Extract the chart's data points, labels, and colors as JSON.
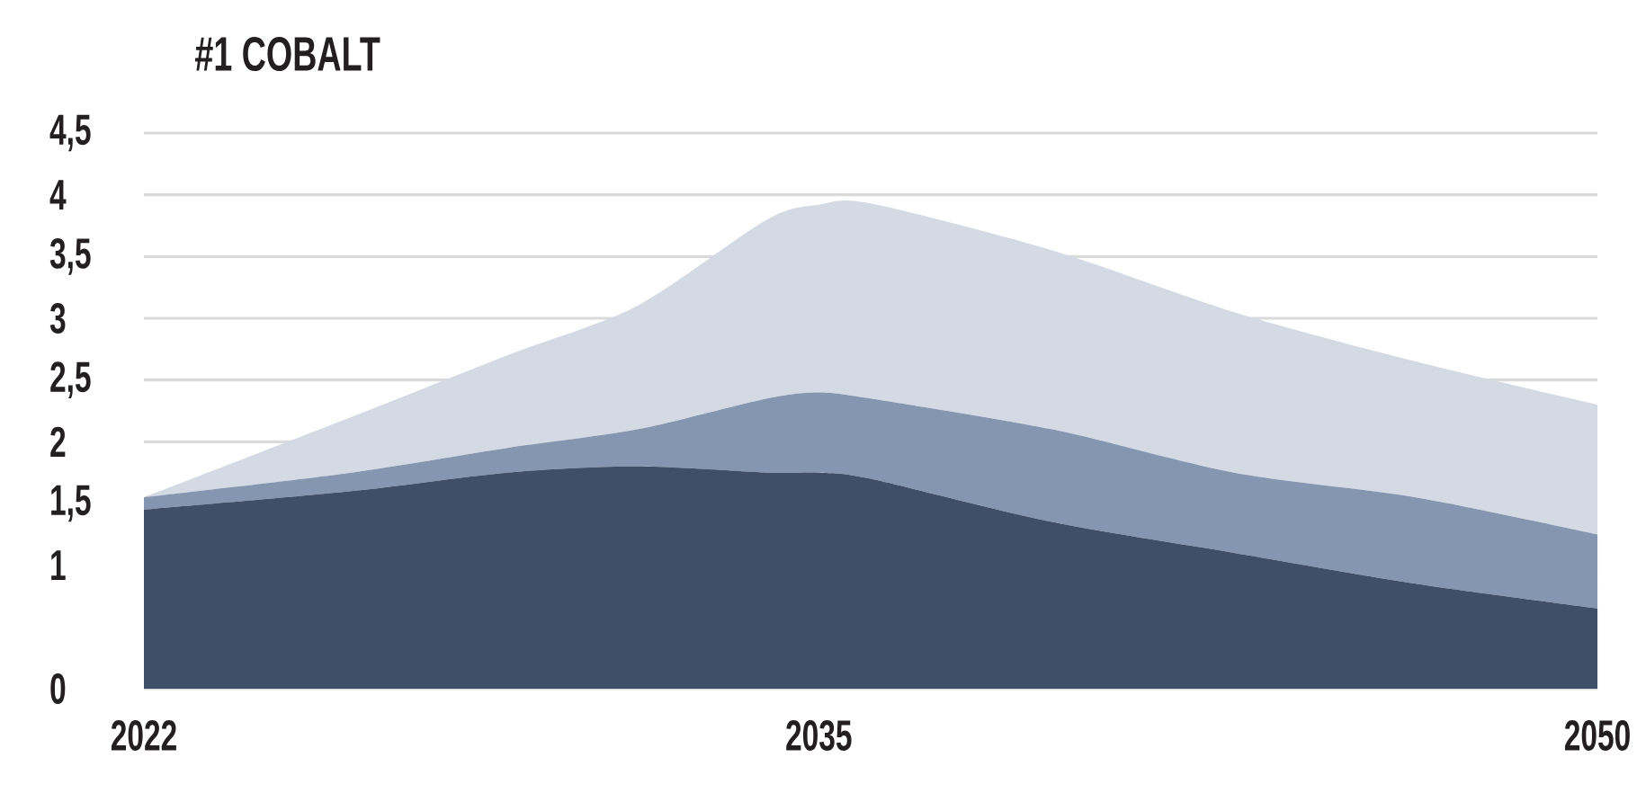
{
  "chart_data": {
    "type": "area",
    "title": "#1 COBALT",
    "stacked": true,
    "x": [
      2022,
      2026,
      2029,
      2031.5,
      2034,
      2035,
      2036,
      2039.5,
      2043,
      2046.5,
      2050
    ],
    "xlim": [
      2022,
      2050
    ],
    "xticks": [
      2022,
      2035,
      2050
    ],
    "ylim": [
      0,
      4.5
    ],
    "yticks": [
      0,
      1,
      {
        "value": 1.5,
        "label": "1,5"
      },
      2,
      {
        "value": 2.5,
        "label": "2,5"
      },
      3,
      {
        "value": 3.5,
        "label": "3,5"
      },
      4,
      {
        "value": 4.5,
        "label": "4,5"
      }
    ],
    "grid": "y",
    "series": [
      {
        "color": "#3e4f67",
        "values": [
          1.45,
          1.6,
          1.75,
          1.8,
          1.75,
          1.75,
          1.7,
          1.35,
          1.1,
          0.85,
          0.65
        ]
      },
      {
        "color": "#8596b0",
        "values": [
          0.1,
          0.15,
          0.2,
          0.3,
          0.6,
          0.65,
          0.65,
          0.75,
          0.65,
          0.7,
          0.6
        ]
      },
      {
        "color": "#d4dae3",
        "values": [
          0,
          0.45,
          0.75,
          1.0,
          1.45,
          1.52,
          1.58,
          1.45,
          1.3,
          1.1,
          1.05
        ]
      }
    ]
  }
}
